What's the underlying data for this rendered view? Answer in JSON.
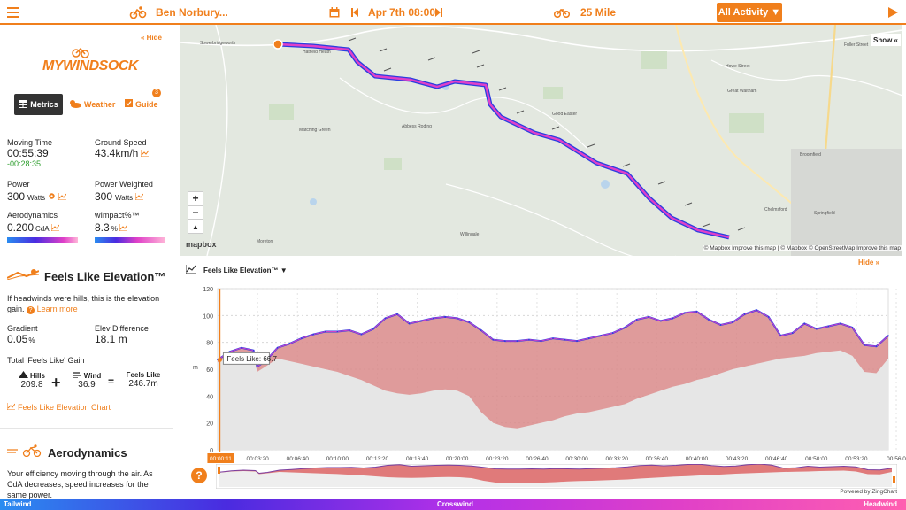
{
  "topbar": {
    "user_name": "Ben Norbury...",
    "date": "Apr 7th 08:00",
    "distance": "25 Mile",
    "activity_button": "All Activity ▼"
  },
  "sidebar": {
    "hide_label": "« Hide",
    "logo_text": "MYWINDSOCK",
    "tabs": [
      {
        "label": "Metrics",
        "icon": "table-icon",
        "active": true
      },
      {
        "label": "Weather",
        "icon": "cloud-icon",
        "active": false
      },
      {
        "label": "Guide",
        "icon": "checkbox-icon",
        "active": false,
        "badge": "3"
      }
    ],
    "metrics": {
      "moving_time_label": "Moving Time",
      "moving_time_value": "00:55:39",
      "moving_time_delta": "-00:28:35",
      "ground_speed_label": "Ground Speed",
      "ground_speed_value": "43.4km/h",
      "power_label": "Power",
      "power_value": "300",
      "power_unit": "Watts",
      "power_weighted_label": "Power Weighted",
      "power_weighted_value": "300",
      "power_weighted_unit": "Watts",
      "aero_label": "Aerodynamics",
      "aero_value": "0.200",
      "aero_unit": "CdA",
      "wimpact_label": "wImpact%™",
      "wimpact_value": "8.3",
      "wimpact_unit": "%"
    },
    "feels_like": {
      "title": "Feels Like Elevation™",
      "desc": "If headwinds were hills, this is the elevation gain.",
      "learn_more": "Learn more",
      "gradient_label": "Gradient",
      "gradient_value": "0.05",
      "gradient_unit": "%",
      "elev_diff_label": "Elev Difference",
      "elev_diff_value": "18.1 m",
      "total_label": "Total 'Feels Like' Gain",
      "hills_label": "Hills",
      "hills_value": "209.8",
      "wind_label": "Wind",
      "wind_value": "36.9",
      "feels_label": "Feels Like",
      "feels_value": "246.7m",
      "plus": "+",
      "equals": "=",
      "chart_link": "Feels Like Elevation Chart"
    },
    "aero": {
      "title": "Aerodynamics",
      "desc": "Your efficiency moving through the air. As CdA decreases, speed increases for the same power."
    }
  },
  "map": {
    "show_label": "Show «",
    "zoom_in": "+",
    "zoom_out": "−",
    "compass": "▲",
    "logo": "mapbox",
    "attribution": "© Mapbox  Improve this map | © Mapbox © OpenStreetMap  Improve this map",
    "places": [
      "Sowerbridgeworth",
      "Hatfield Heath",
      "Matching Green",
      "Abbess Roding",
      "Good Easter",
      "Great Waltham",
      "Howe Street",
      "Broomfield",
      "Chelmsford",
      "Springfield",
      "Willingale",
      "Moreton",
      "Fuller Street"
    ]
  },
  "chart_panel": {
    "dropdown_label": "Feels Like Elevation™ ▼",
    "hide_label": "Hide »",
    "tooltip": "Feels Like: 66.7",
    "current_time": "00:00:11",
    "powered_by": "Powered by ZingChart",
    "help_icon": "?"
  },
  "chart_data": {
    "type": "area",
    "ylabel": "m",
    "ylim": [
      0,
      120
    ],
    "yticks": [
      0,
      20,
      40,
      60,
      80,
      100,
      120
    ],
    "xticks": [
      "00:03:20",
      "00:06:40",
      "00:10:00",
      "00:13:20",
      "00:16:40",
      "00:20:00",
      "00:23:20",
      "00:26:40",
      "00:30:00",
      "00:33:20",
      "00:36:40",
      "00:40:00",
      "00:43:20",
      "00:46:40",
      "00:50:00",
      "00:53:20",
      "00:56:0"
    ],
    "x_minutes": [
      0,
      1,
      2,
      3,
      3.3,
      4,
      5,
      6,
      7,
      8,
      9,
      10,
      11,
      12,
      13,
      14,
      15,
      16,
      17,
      18,
      19,
      20,
      21,
      22,
      23,
      24,
      25,
      26,
      27,
      28,
      29,
      30,
      31,
      32,
      33,
      34,
      35,
      36,
      37,
      38,
      39,
      40,
      41,
      42,
      43,
      44,
      45,
      46,
      47,
      48,
      49,
      50,
      51,
      52,
      53,
      54,
      55,
      56
    ],
    "series": [
      {
        "name": "Feels Like",
        "values": [
          67,
          73,
          76,
          74,
          62,
          66,
          76,
          79,
          83,
          86,
          88,
          88,
          89,
          86,
          90,
          98,
          101,
          94,
          96,
          98,
          99,
          98,
          95,
          89,
          82,
          81,
          81,
          82,
          81,
          83,
          82,
          81,
          83,
          85,
          87,
          91,
          97,
          99,
          96,
          98,
          102,
          103,
          97,
          93,
          95,
          101,
          104,
          99,
          85,
          87,
          94,
          90,
          92,
          94,
          91,
          78,
          77,
          85
        ]
      },
      {
        "name": "Elevation",
        "values": [
          65,
          70,
          72,
          70,
          58,
          62,
          68,
          66,
          64,
          62,
          60,
          58,
          55,
          52,
          48,
          44,
          42,
          41,
          42,
          44,
          45,
          44,
          40,
          28,
          20,
          17,
          16,
          18,
          20,
          22,
          25,
          27,
          28,
          30,
          32,
          34,
          38,
          41,
          44,
          47,
          49,
          52,
          54,
          57,
          60,
          62,
          64,
          66,
          68,
          69,
          70,
          72,
          73,
          74,
          70,
          58,
          57,
          68
        ]
      }
    ],
    "colors": {
      "feels_fill": "#d98a8a",
      "elev_fill": "#e6e6e6",
      "line_hi": "#e040c8",
      "line_lo": "#2a3ee0"
    }
  },
  "bottom_legend": {
    "left": "Tailwind",
    "center": "Crosswind",
    "right": "Headwind"
  },
  "colors": {
    "accent": "#f07f1c"
  }
}
